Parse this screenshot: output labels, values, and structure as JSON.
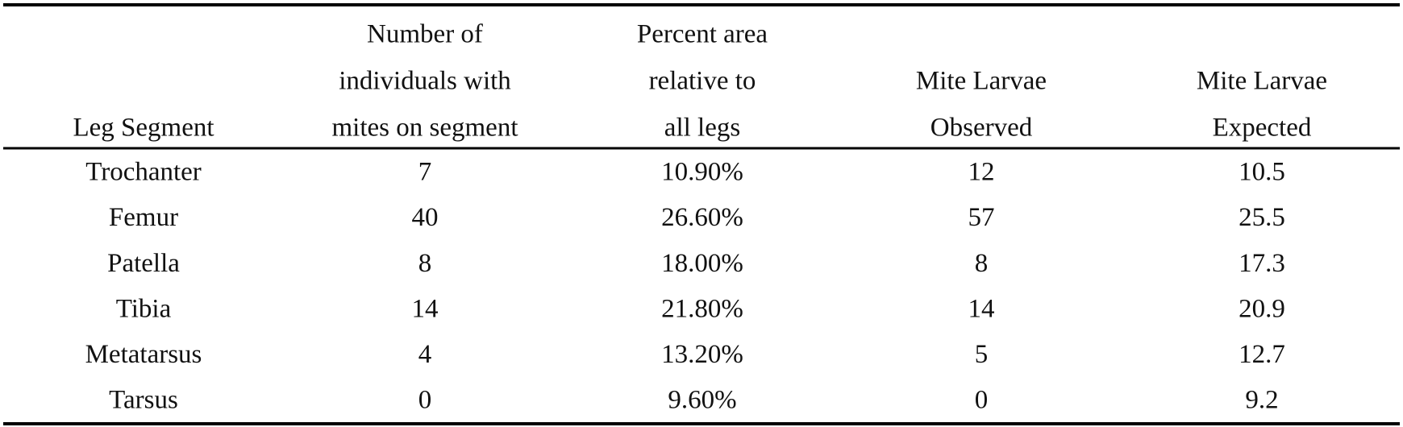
{
  "table": {
    "header": [
      [
        "Leg Segment"
      ],
      [
        "Number of",
        "individuals with",
        "mites on segment"
      ],
      [
        "Percent area",
        "relative to",
        "all legs"
      ],
      [
        "Mite Larvae",
        "Observed"
      ],
      [
        "Mite Larvae",
        "Expected"
      ]
    ],
    "rows": [
      [
        "Trochanter",
        "7",
        "10.90%",
        "12",
        "10.5"
      ],
      [
        "Femur",
        "40",
        "26.60%",
        "57",
        "25.5"
      ],
      [
        "Patella",
        "8",
        "18.00%",
        "8",
        "17.3"
      ],
      [
        "Tibia",
        "14",
        "21.80%",
        "14",
        "20.9"
      ],
      [
        "Metatarsus",
        "4",
        "13.20%",
        "5",
        "12.7"
      ],
      [
        "Tarsus",
        "0",
        "9.60%",
        "0",
        "9.2"
      ]
    ]
  }
}
